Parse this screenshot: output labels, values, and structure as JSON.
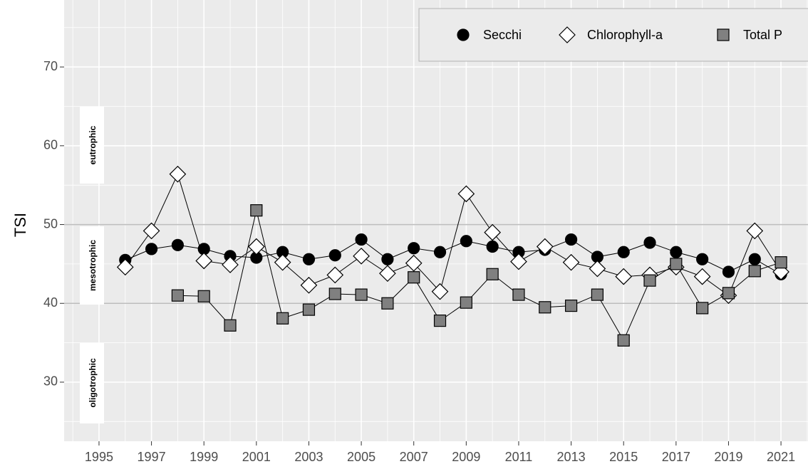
{
  "chart_data": {
    "type": "line",
    "y_label": "TSI",
    "annotations": [
      "eutrophic",
      "mesotrophic",
      "oligotrophic"
    ],
    "x": [
      1996,
      1997,
      1998,
      1999,
      2000,
      2001,
      2002,
      2003,
      2004,
      2005,
      2006,
      2007,
      2008,
      2009,
      2010,
      2011,
      2012,
      2013,
      2014,
      2015,
      2016,
      2017,
      2018,
      2019,
      2020,
      2021
    ],
    "series": [
      {
        "name": "Secchi",
        "marker": "circle",
        "color": "#000000",
        "values": [
          45.5,
          46.9,
          47.4,
          46.9,
          46.0,
          45.8,
          46.5,
          45.6,
          46.1,
          48.1,
          45.6,
          47.0,
          46.5,
          47.9,
          47.2,
          46.5,
          46.8,
          48.1,
          45.9,
          46.5,
          47.7,
          46.5,
          45.6,
          44.0,
          45.6,
          43.7
        ]
      },
      {
        "name": "Chlorophyll-a",
        "marker": "diamond",
        "color": "#ffffff",
        "values": [
          44.6,
          49.2,
          56.4,
          45.4,
          44.9,
          47.2,
          45.2,
          42.3,
          43.6,
          46.0,
          43.8,
          45.1,
          41.5,
          53.9,
          49.0,
          45.3,
          47.2,
          45.2,
          44.4,
          43.4,
          43.6,
          44.6,
          43.4,
          41.0,
          49.2,
          44.0
        ]
      },
      {
        "name": "Total P",
        "marker": "square",
        "color": "#808080",
        "values": [
          null,
          null,
          41.0,
          40.9,
          37.2,
          51.8,
          38.1,
          39.2,
          41.2,
          41.1,
          40.0,
          43.3,
          37.8,
          40.1,
          43.7,
          41.1,
          39.5,
          39.7,
          41.1,
          35.3,
          42.9,
          45.0,
          39.4,
          41.3,
          44.1,
          45.2
        ]
      }
    ],
    "hlines": [
      40,
      50
    ],
    "xlim": [
      1993.67,
      2022.03
    ],
    "ylim": [
      22.5,
      78.5
    ],
    "xticks": [
      1995,
      1997,
      1999,
      2001,
      2003,
      2005,
      2007,
      2009,
      2011,
      2013,
      2015,
      2017,
      2019,
      2021
    ],
    "yticks": [
      30,
      40,
      50,
      60,
      70
    ],
    "grid": true,
    "legend_position": "top-right"
  }
}
